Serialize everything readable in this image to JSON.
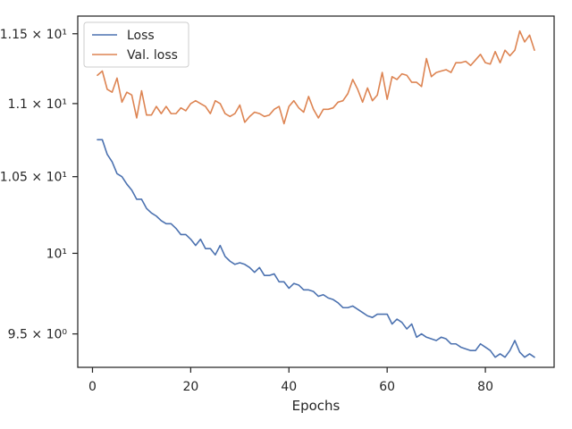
{
  "chart_data": {
    "type": "line",
    "xlabel": "Epochs",
    "ylabel": "",
    "title": "",
    "y_scale": "log",
    "grid": false,
    "legend_position": "top-left",
    "xlim": [
      -3,
      94
    ],
    "ylim": [
      9.3,
      11.63
    ],
    "x_ticks": [
      0,
      20,
      40,
      60,
      80
    ],
    "x_tick_labels": [
      "0",
      "20",
      "40",
      "60",
      "80"
    ],
    "y_ticks": [
      9.5,
      10,
      10.5,
      11,
      11.5
    ],
    "y_tick_labels": [
      "9.5 × 10⁰",
      "10¹",
      "1.05 × 10¹",
      "1.1 × 10¹",
      "1.15 × 10¹"
    ],
    "x": [
      1,
      2,
      3,
      4,
      5,
      6,
      7,
      8,
      9,
      10,
      11,
      12,
      13,
      14,
      15,
      16,
      17,
      18,
      19,
      20,
      21,
      22,
      23,
      24,
      25,
      26,
      27,
      28,
      29,
      30,
      31,
      32,
      33,
      34,
      35,
      36,
      37,
      38,
      39,
      40,
      41,
      42,
      43,
      44,
      45,
      46,
      47,
      48,
      49,
      50,
      51,
      52,
      53,
      54,
      55,
      56,
      57,
      58,
      59,
      60,
      61,
      62,
      63,
      64,
      65,
      66,
      67,
      68,
      69,
      70,
      71,
      72,
      73,
      74,
      75,
      76,
      77,
      78,
      79,
      80,
      81,
      82,
      83,
      84,
      85,
      86,
      87,
      88,
      89,
      90
    ],
    "series": [
      {
        "name": "Loss",
        "color": "#4c72b0",
        "values": [
          10.75,
          10.75,
          10.65,
          10.6,
          10.52,
          10.5,
          10.45,
          10.41,
          10.35,
          10.35,
          10.29,
          10.26,
          10.24,
          10.21,
          10.19,
          10.19,
          10.16,
          10.12,
          10.12,
          10.09,
          10.05,
          10.09,
          10.03,
          10.03,
          9.99,
          10.05,
          9.98,
          9.95,
          9.93,
          9.94,
          9.93,
          9.91,
          9.88,
          9.91,
          9.86,
          9.86,
          9.87,
          9.82,
          9.82,
          9.78,
          9.81,
          9.8,
          9.77,
          9.77,
          9.76,
          9.73,
          9.74,
          9.72,
          9.71,
          9.69,
          9.66,
          9.66,
          9.67,
          9.65,
          9.63,
          9.61,
          9.6,
          9.62,
          9.62,
          9.62,
          9.56,
          9.59,
          9.57,
          9.53,
          9.56,
          9.48,
          9.5,
          9.48,
          9.47,
          9.46,
          9.48,
          9.47,
          9.44,
          9.44,
          9.42,
          9.41,
          9.4,
          9.4,
          9.44,
          9.42,
          9.4,
          9.36,
          9.38,
          9.36,
          9.4,
          9.46,
          9.39,
          9.36,
          9.38,
          9.36
        ]
      },
      {
        "name": "Val. loss",
        "color": "#dd8452",
        "values": [
          11.2,
          11.23,
          11.1,
          11.08,
          11.18,
          11.01,
          11.08,
          11.06,
          10.9,
          11.09,
          10.92,
          10.92,
          10.98,
          10.93,
          10.98,
          10.93,
          10.93,
          10.97,
          10.95,
          11.0,
          11.02,
          11.0,
          10.98,
          10.93,
          11.02,
          11.0,
          10.93,
          10.91,
          10.93,
          10.99,
          10.87,
          10.91,
          10.94,
          10.93,
          10.91,
          10.92,
          10.96,
          10.98,
          10.86,
          10.98,
          11.02,
          10.97,
          10.94,
          11.05,
          10.96,
          10.9,
          10.96,
          10.96,
          10.97,
          11.01,
          11.02,
          11.07,
          11.17,
          11.1,
          11.01,
          11.11,
          11.02,
          11.06,
          11.22,
          11.03,
          11.19,
          11.17,
          11.21,
          11.2,
          11.15,
          11.15,
          11.12,
          11.32,
          11.19,
          11.22,
          11.23,
          11.24,
          11.22,
          11.29,
          11.29,
          11.3,
          11.27,
          11.31,
          11.35,
          11.29,
          11.28,
          11.37,
          11.29,
          11.38,
          11.34,
          11.38,
          11.52,
          11.44,
          11.49,
          11.38
        ]
      }
    ]
  }
}
